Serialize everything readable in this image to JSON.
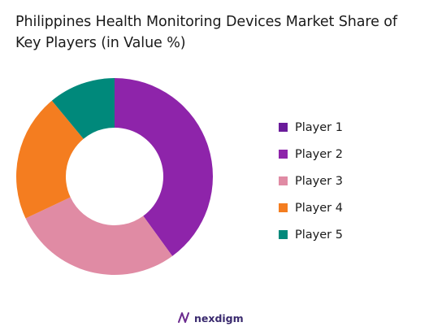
{
  "chart_data": {
    "type": "pie",
    "donut": true,
    "title": "Philippines Health Monitoring Devices Market Share of Key Players (in Value %)",
    "categories": [
      "Player 1",
      "Player 2",
      "Player 3",
      "Player 4",
      "Player 5"
    ],
    "values": [
      0,
      40,
      28,
      21,
      11
    ],
    "colors": [
      "#6a1b9a",
      "#8e24aa",
      "#e08ba4",
      "#f47d20",
      "#00897b"
    ],
    "legend_position": "right"
  },
  "brand": {
    "name": "nexdigm",
    "icon": "nexdigm-logo-icon"
  }
}
